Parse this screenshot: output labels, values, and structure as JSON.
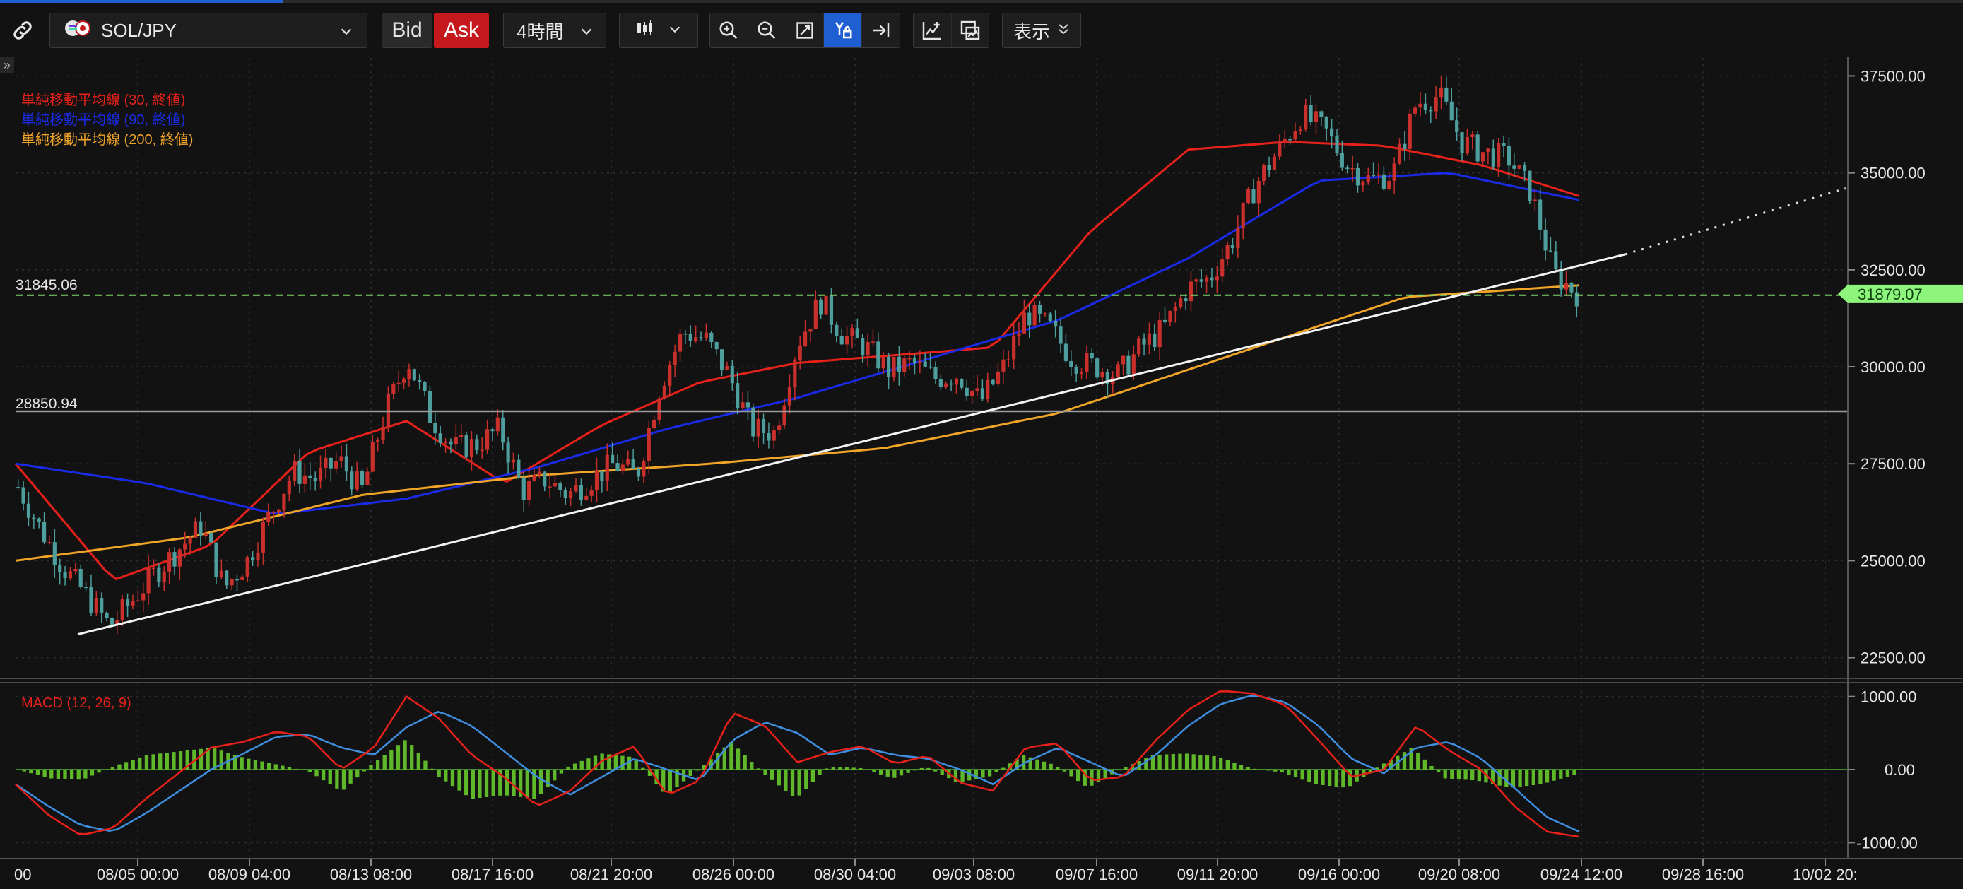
{
  "toolbar": {
    "symbol": "SOL/JPY",
    "bid_label": "Bid",
    "ask_label": "Ask",
    "timeframe": "4時間",
    "display_label": "表示",
    "icons": [
      "link-icon",
      "currency-pair-icon",
      "chevron-down-icon",
      "candlestick-icon",
      "zoom-in-icon",
      "zoom-out-icon",
      "fit-icon",
      "y-axis-lock-icon",
      "scroll-to-latest-icon",
      "add-indicator-icon",
      "screenshot-icon"
    ]
  },
  "colors": {
    "up": "#c9302c",
    "down": "#4e9e9e",
    "sma30": "#e8211a",
    "sma90": "#1a2be8",
    "sma200": "#f0a428",
    "macd_line": "#e8211a",
    "signal_line": "#3f8fe0",
    "histogram": "#5fb82a",
    "current_price_tag": "#8ef57c",
    "background": "#121212"
  },
  "chart_data": [
    {
      "type": "candlestick",
      "title": "SOL/JPY",
      "ylim": [
        22000,
        38000
      ],
      "yticks": [
        "37500.00",
        "35000.00",
        "32500.00",
        "30000.00",
        "27500.00",
        "25000.00",
        "22500.00"
      ],
      "xticks": [
        "08/05 00:00",
        "08/09 04:00",
        "08/13 08:00",
        "08/17 16:00",
        "08/21 20:00",
        "08/26 00:00",
        "08/30 04:00",
        "09/03 08:00",
        "09/07 16:00",
        "09/11 20:00",
        "09/16 00:00",
        "09/20 08:00",
        "09/24 12:00",
        "09/28 16:00",
        "10/02 20:"
      ],
      "xtick_first_partial": "00",
      "close_series_approx": [
        26900,
        25800,
        24800,
        24100,
        23300,
        24000,
        24700,
        25300,
        25900,
        24300,
        25000,
        26200,
        27300,
        27100,
        27600,
        26800,
        28800,
        30200,
        28700,
        27900,
        28000,
        28400,
        26800,
        27100,
        26700,
        27100,
        27500,
        27200,
        29500,
        30900,
        30700,
        29800,
        28400,
        28300,
        30600,
        31700,
        30800,
        30500,
        29900,
        30100,
        29700,
        29800,
        29100,
        30000,
        31400,
        31000,
        30200,
        30000,
        29800,
        30500,
        31000,
        32000,
        32300,
        33300,
        34700,
        35600,
        36500,
        36100,
        35200,
        34800,
        35000,
        36800,
        37000,
        35800,
        35500,
        35400,
        34500,
        32400,
        31900
      ],
      "moving_averages": [
        {
          "name": "単純移動平均線 (30, 終値)",
          "values_approx": [
            27500,
            24500,
            25400,
            27800,
            28600,
            27000,
            28500,
            29600,
            30100,
            30300,
            30500,
            33500,
            35600,
            35800,
            35700,
            35200,
            34400
          ]
        },
        {
          "name": "単純移動平均線 (90, 終値)",
          "values_approx": [
            27500,
            27000,
            26200,
            26600,
            27400,
            28400,
            29200,
            30200,
            31200,
            32800,
            34800,
            35000,
            34300
          ]
        },
        {
          "name": "単純移動平均線 (200, 終値)",
          "values_approx": [
            25000,
            25600,
            26700,
            27200,
            27500,
            27900,
            28800,
            30300,
            31800,
            32100
          ]
        }
      ],
      "trendline": {
        "from": 23100,
        "to_at_last_candle": 32900,
        "projected_end": 34600
      },
      "horizontal_lines": [
        {
          "label": "31845.06",
          "value": 31845.06
        },
        {
          "label": "28850.94",
          "value": 28850.94
        }
      ],
      "current_price": {
        "label": "31879.07",
        "value": 31879.07
      }
    },
    {
      "type": "macd",
      "title": "MACD (12, 26, 9)",
      "ylim": [
        -1200,
        1200
      ],
      "yticks": [
        "1000.00",
        "0.00",
        "-1000.00"
      ],
      "macd_approx": [
        -200,
        -620,
        -900,
        -800,
        -400,
        -50,
        300,
        380,
        520,
        450,
        0,
        300,
        1000,
        700,
        200,
        -100,
        -500,
        -300,
        120,
        320,
        -350,
        -150,
        780,
        600,
        100,
        240,
        320,
        80,
        190,
        -180,
        -290,
        300,
        360,
        -150,
        -100,
        400,
        820,
        1080,
        1040,
        880,
        400,
        -100,
        0,
        600,
        260,
        0,
        -500,
        -850,
        -920
      ],
      "signal_approx": [
        -200,
        -500,
        -760,
        -850,
        -600,
        -300,
        0,
        220,
        450,
        480,
        300,
        200,
        580,
        800,
        600,
        250,
        -100,
        -350,
        -100,
        150,
        0,
        -150,
        400,
        650,
        500,
        200,
        300,
        200,
        150,
        0,
        -200,
        100,
        300,
        100,
        -100,
        200,
        600,
        900,
        1020,
        920,
        600,
        150,
        -50,
        300,
        380,
        150,
        -250,
        -650,
        -850
      ]
    }
  ]
}
